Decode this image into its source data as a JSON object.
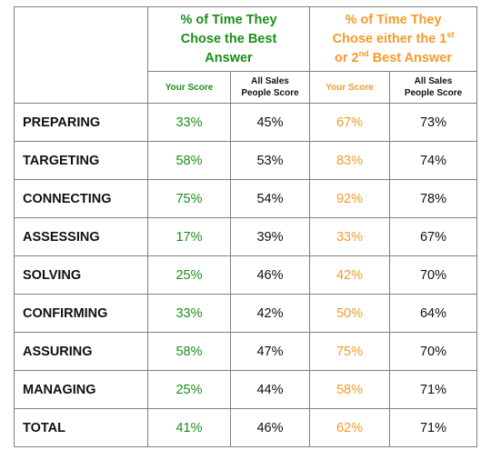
{
  "headers": {
    "best_answer": [
      "% of Time They",
      "Chose the Best",
      "Answer"
    ],
    "top_two": {
      "line1": "% of Time They",
      "line2_prefix": "Chose either the 1",
      "line2_sup": "st",
      "line3_prefix": "or 2",
      "line3_sup": "nd",
      "line3_suffix": " Best Answer"
    },
    "your_score": "Your Score",
    "all_sales": [
      "All Sales",
      "People Score"
    ]
  },
  "colors": {
    "green": "#1a8f1a",
    "orange": "#f79a2a",
    "border": "#7f7f7f"
  },
  "rows": [
    {
      "label": "PREPARING",
      "best_your": "33%",
      "best_all": "45%",
      "top2_your": "67%",
      "top2_all": "73%"
    },
    {
      "label": "TARGETING",
      "best_your": "58%",
      "best_all": "53%",
      "top2_your": "83%",
      "top2_all": "74%"
    },
    {
      "label": "CONNECTING",
      "best_your": "75%",
      "best_all": "54%",
      "top2_your": "92%",
      "top2_all": "78%"
    },
    {
      "label": "ASSESSING",
      "best_your": "17%",
      "best_all": "39%",
      "top2_your": "33%",
      "top2_all": "67%"
    },
    {
      "label": "SOLVING",
      "best_your": "25%",
      "best_all": "46%",
      "top2_your": "42%",
      "top2_all": "70%"
    },
    {
      "label": "CONFIRMING",
      "best_your": "33%",
      "best_all": "42%",
      "top2_your": "50%",
      "top2_all": "64%"
    },
    {
      "label": "ASSURING",
      "best_your": "58%",
      "best_all": "47%",
      "top2_your": "75%",
      "top2_all": "70%"
    },
    {
      "label": "MANAGING",
      "best_your": "25%",
      "best_all": "44%",
      "top2_your": "58%",
      "top2_all": "71%"
    },
    {
      "label": "TOTAL",
      "best_your": "41%",
      "best_all": "46%",
      "top2_your": "62%",
      "top2_all": "71%"
    }
  ]
}
